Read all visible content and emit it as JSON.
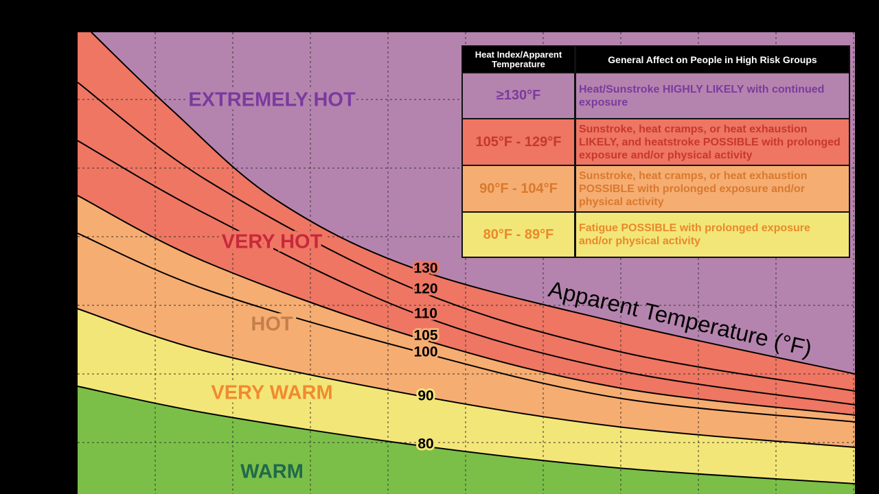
{
  "zones": [
    "EXTREMELY HOT",
    "VERY HOT",
    "HOT",
    "VERY WARM",
    "WARM"
  ],
  "contour_labels": [
    "130",
    "120",
    "110",
    "105",
    "100",
    "90",
    "80"
  ],
  "axis_label": "Apparent Temperature (°F)",
  "table": {
    "header": [
      "Heat Index/Apparent Temperature",
      "General Affect on People in High Risk Groups"
    ],
    "rows": [
      [
        "≥130°F",
        "Heat/Sunstroke HIGHLY LIKELY with continued exposure"
      ],
      [
        "105°F - 129°F",
        "Sunstroke, heat cramps, or heat exhaustion LIKELY, and heatstroke POSSIBLE with prolonged exposure and/or physical activity"
      ],
      [
        "90°F - 104°F",
        "Sunstroke, heat cramps, or heat exhaustion POSSIBLE with prolonged exposure and/or physical activity"
      ],
      [
        "80°F - 89°F",
        "Fatigue POSSIBLE with prolonged exposure and/or physical activity"
      ]
    ]
  }
}
